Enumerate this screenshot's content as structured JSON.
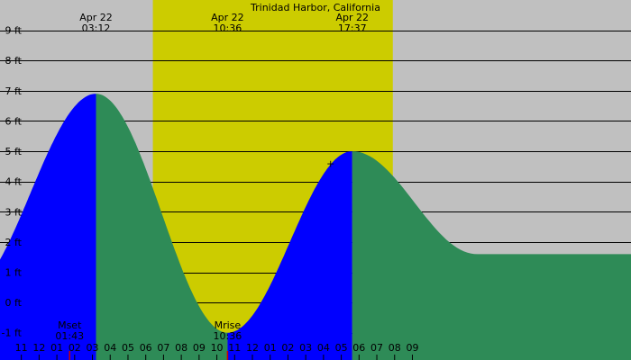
{
  "chart_data": {
    "type": "area",
    "title": "Trinidad Harbor, California",
    "xlabel": "",
    "ylabel": "",
    "y_unit": "ft",
    "ylim": [
      -1.9,
      10.0
    ],
    "x_range_hours": [
      -2.2,
      33.3
    ],
    "y_ticks": [
      {
        "value": 9,
        "label": "9 ft"
      },
      {
        "value": 8,
        "label": "8 ft"
      },
      {
        "value": 7,
        "label": "7 ft"
      },
      {
        "value": 6,
        "label": "6 ft"
      },
      {
        "value": 5,
        "label": "5 ft"
      },
      {
        "value": 4,
        "label": "4 ft"
      },
      {
        "value": 3,
        "label": "3 ft"
      },
      {
        "value": 2,
        "label": "2 ft"
      },
      {
        "value": 1,
        "label": "1 ft"
      },
      {
        "value": 0,
        "label": "0 ft"
      },
      {
        "value": -1,
        "label": "-1 ft"
      }
    ],
    "x_ticks": [
      {
        "hour": -1,
        "label": "11"
      },
      {
        "hour": 0,
        "label": "12"
      },
      {
        "hour": 1,
        "label": "01"
      },
      {
        "hour": 2,
        "label": "02"
      },
      {
        "hour": 3,
        "label": "03"
      },
      {
        "hour": 4,
        "label": "04"
      },
      {
        "hour": 5,
        "label": "05"
      },
      {
        "hour": 6,
        "label": "06"
      },
      {
        "hour": 7,
        "label": "07"
      },
      {
        "hour": 8,
        "label": "08"
      },
      {
        "hour": 9,
        "label": "09"
      },
      {
        "hour": 10,
        "label": "10"
      },
      {
        "hour": 11,
        "label": "11"
      },
      {
        "hour": 12,
        "label": "12"
      },
      {
        "hour": 13,
        "label": "01"
      },
      {
        "hour": 14,
        "label": "02"
      },
      {
        "hour": 15,
        "label": "03"
      },
      {
        "hour": 16,
        "label": "04"
      },
      {
        "hour": 17,
        "label": "05"
      },
      {
        "hour": 18,
        "label": "06"
      },
      {
        "hour": 19,
        "label": "07"
      },
      {
        "hour": 20,
        "label": "08"
      },
      {
        "hour": 21,
        "label": "09"
      }
    ],
    "daylight": {
      "start_hour": 6.4,
      "end_hour": 19.9
    },
    "extremes": [
      {
        "type": "high",
        "date": "Apr 22",
        "time": "03:12",
        "hour": 3.2,
        "height_ft": 6.9
      },
      {
        "type": "low",
        "date": "Apr 22",
        "time": "10:36",
        "hour": 10.6,
        "height_ft": -1.0
      },
      {
        "type": "high",
        "date": "Apr 22",
        "time": "17:37",
        "hour": 17.617,
        "height_ft": 5.0
      }
    ],
    "start_height_ft": 3.6,
    "end_height_ft": 3.3,
    "moon_events": [
      {
        "label": "Mset",
        "time": "01:43",
        "hour": 1.717
      },
      {
        "label": "Mrise",
        "time": "10:36",
        "hour": 10.6
      }
    ],
    "marker": {
      "symbol": "+",
      "hour": 16.4,
      "height_ft": 4.6
    },
    "colors": {
      "background": "#c0c0c0",
      "daylight": "#cccc00",
      "rising_tide": "#0000ff",
      "falling_tide": "#2e8b57",
      "gridline": "#000000",
      "moon_marker": "#cc0000"
    }
  }
}
